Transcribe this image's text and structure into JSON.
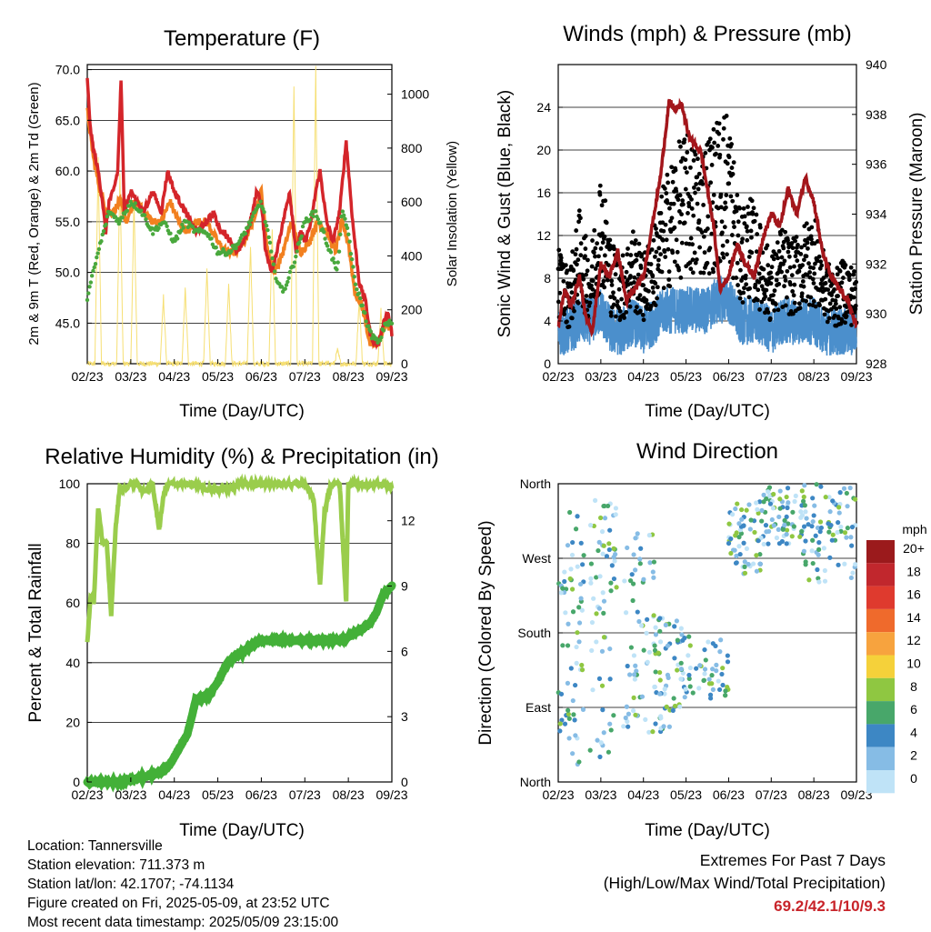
{
  "chart_data": [
    {
      "type": "line",
      "title": "Temperature (F)",
      "xlabel": "Time (Day/UTC)",
      "ylabel": "2m & 9m T (Red, Orange) & 2m Td (Green)",
      "y2label": "Solar Insolation (Yellow)",
      "xticks": [
        "02/23",
        "03/23",
        "04/23",
        "05/23",
        "06/23",
        "07/23",
        "08/23",
        "09/23"
      ],
      "yticks": [
        "45.0",
        "50.0",
        "55.0",
        "60.0",
        "65.0",
        "70.0"
      ],
      "y2ticks": [
        "0",
        "200",
        "400",
        "600",
        "800",
        "1000"
      ],
      "ylim": [
        41,
        70.5
      ],
      "y2lim": [
        0,
        1110
      ],
      "grid": "horizontal",
      "series": [
        {
          "x": [
            0,
            0.15,
            0.3,
            0.5,
            0.7,
            0.85,
            1.0,
            1.2,
            1.4,
            1.55,
            1.7,
            2.0,
            2.3,
            2.6,
            3.0,
            3.4,
            3.7,
            4.0,
            4.5,
            5.0,
            5.5,
            5.8,
            6.1,
            6.3,
            6.6,
            6.9,
            7.2,
            7.5,
            7.8,
            8.0,
            8.2,
            8.35,
            8.5,
            8.7,
            9.0,
            9.3,
            9.6,
            9.8,
            10.0,
            10.3,
            10.5,
            10.7,
            11.0,
            11.3,
            11.6,
            11.9,
            12.2,
            12.5,
            12.8,
            13.0,
            13.2,
            13.4,
            13.6,
            13.8,
            14.0
          ],
          "values": [
            69,
            64,
            62,
            60,
            57,
            54,
            57,
            58,
            60,
            69,
            56,
            58,
            57,
            56,
            58,
            56,
            60,
            58,
            56,
            54,
            55,
            56,
            54,
            54,
            53,
            52,
            53,
            55,
            58,
            57,
            52,
            51,
            50,
            52,
            55,
            58,
            52,
            54,
            53,
            55,
            58,
            60,
            55,
            53,
            56,
            63,
            55,
            49,
            47,
            44,
            43,
            43,
            45,
            46,
            44
          ]
        },
        {
          "x": [
            0,
            0.3,
            0.6,
            0.9,
            1.2,
            1.5,
            1.8,
            2.2,
            2.6,
            3.0,
            3.4,
            3.8,
            4.2,
            4.6,
            5.0,
            5.5,
            6.0,
            6.4,
            6.8,
            7.2,
            7.6,
            8.0,
            8.3,
            8.6,
            9.0,
            9.4,
            9.8,
            10.2,
            10.6,
            11.0,
            11.4,
            11.7,
            12.0,
            12.3,
            12.6,
            13.0,
            13.4,
            13.7,
            14.0
          ],
          "values": [
            66,
            61,
            58,
            56,
            56,
            57,
            55,
            57,
            56,
            55,
            55,
            57,
            55,
            54,
            55,
            55,
            53,
            52,
            52,
            53,
            55,
            58,
            52,
            50,
            52,
            55,
            52,
            53,
            55,
            54,
            52,
            55,
            53,
            48,
            47,
            43,
            43,
            45,
            44
          ]
        },
        {
          "x": [
            0,
            0.5,
            1.0,
            1.5,
            2.0,
            2.5,
            3.0,
            3.5,
            4.0,
            4.5,
            5.0,
            5.5,
            6.0,
            6.5,
            7.0,
            7.5,
            8.0,
            8.3,
            8.6,
            9.0,
            9.5,
            10.0,
            10.5,
            11.0,
            11.5,
            11.7,
            12.0,
            12.3,
            12.6,
            13.0,
            13.4,
            13.7,
            14.0
          ],
          "values": [
            47.5,
            52,
            56,
            55,
            57,
            56,
            54,
            55,
            53,
            55,
            54,
            54,
            52,
            52,
            53,
            55,
            57,
            54,
            50,
            48,
            51,
            55,
            56,
            53,
            50,
            56,
            54,
            49,
            47,
            44,
            43,
            45,
            45
          ]
        },
        {
          "x": [
            0,
            0.35,
            0.5,
            0.65,
            0.9,
            1.35,
            1.5,
            1.65,
            1.9,
            2.0,
            2.15,
            2.3,
            2.5,
            3.35,
            3.5,
            3.65,
            3.9,
            4.35,
            4.5,
            4.65,
            4.9,
            5.35,
            5.5,
            5.65,
            5.9,
            6.35,
            6.5,
            6.65,
            6.9,
            7.35,
            7.5,
            7.65,
            7.9,
            8.35,
            8.5,
            8.65,
            8.9,
            9.35,
            9.5,
            9.65,
            9.9,
            10.35,
            10.5,
            10.65,
            10.9,
            11.35,
            11.5,
            11.65,
            11.9,
            12.35,
            12.5,
            12.65,
            12.9,
            13.35,
            13.5,
            13.65,
            13.9,
            14.0
          ],
          "values": [
            0,
            0,
            760,
            0,
            0,
            0,
            700,
            0,
            0,
            0,
            600,
            0,
            0,
            0,
            250,
            0,
            0,
            0,
            280,
            0,
            0,
            0,
            350,
            0,
            0,
            0,
            300,
            0,
            0,
            0,
            440,
            0,
            0,
            0,
            500,
            0,
            0,
            0,
            1030,
            0,
            0,
            0,
            1100,
            0,
            0,
            0,
            50,
            0,
            0,
            0,
            240,
            0,
            0,
            0,
            200,
            0,
            0,
            0
          ]
        }
      ]
    },
    {
      "type": "scatter",
      "title": "Winds (mph) & Pressure (mb)",
      "xlabel": "Time (Day/UTC)",
      "ylabel": "Sonic Wind & Gust (Blue, Black)",
      "y2label": "Station Pressure (Maroon)",
      "xticks": [
        "02/23",
        "03/23",
        "04/23",
        "05/23",
        "06/23",
        "07/23",
        "08/23",
        "09/23"
      ],
      "yticks": [
        "0",
        "4",
        "8",
        "12",
        "16",
        "20",
        "24"
      ],
      "y2ticks": [
        "928",
        "930",
        "932",
        "934",
        "936",
        "938",
        "940"
      ],
      "ylim": [
        0,
        28
      ],
      "y2lim": [
        928,
        940
      ],
      "grid": "horizontal",
      "series": [
        {
          "x": [
            0,
            0.3,
            0.6,
            1.0,
            1.3,
            1.6,
            2.0,
            2.4,
            2.8,
            3.2,
            3.6,
            4.0,
            4.4,
            4.8,
            5.2,
            5.5,
            5.8,
            6.1,
            6.4,
            6.7,
            7.0,
            7.3,
            7.6,
            8.0,
            8.4,
            8.8,
            9.2,
            9.6,
            10.0,
            10.4,
            10.8,
            11.2,
            11.6,
            12.0,
            12.4,
            12.8,
            13.2,
            13.6,
            14.0
          ],
          "values": [
            929.5,
            931.0,
            930.3,
            931.5,
            929.8,
            929.3,
            932.0,
            931.5,
            932.5,
            930.5,
            931.0,
            931.5,
            933.5,
            935.5,
            938.5,
            938.2,
            938.4,
            937.2,
            936.8,
            936.5,
            935.0,
            933.5,
            931.0,
            931.5,
            932.8,
            932.0,
            931.5,
            933.0,
            934.0,
            933.5,
            935.0,
            934.0,
            935.5,
            934.5,
            932.5,
            931.5,
            931.0,
            930.5,
            929.5
          ]
        },
        {
          "x": [
            0,
            0.5,
            1,
            1.5,
            2,
            2.5,
            3,
            3.5,
            4,
            4.5,
            5,
            5.5,
            6,
            6.5,
            7,
            7.5,
            8,
            8.5,
            9,
            9.5,
            10,
            10.5,
            11,
            11.5,
            12,
            12.5,
            13,
            13.5,
            14
          ],
          "values": [
            3,
            3,
            4,
            4,
            5,
            3,
            3,
            4,
            3,
            4,
            5,
            5,
            5,
            5,
            5,
            6,
            6,
            4,
            4,
            4,
            3,
            4,
            4,
            4,
            4,
            3,
            3,
            3,
            3
          ]
        },
        {
          "x": [
            0,
            0.5,
            1,
            1.5,
            2,
            2.5,
            3,
            3.5,
            4,
            4.5,
            5,
            5.5,
            6,
            6.5,
            7,
            7.5,
            8,
            8.5,
            9,
            9.5,
            10,
            10.5,
            11,
            11.5,
            12,
            12.5,
            13,
            13.5,
            14
          ],
          "values": [
            8,
            6,
            10,
            7,
            13,
            8,
            7,
            9,
            7,
            9,
            12,
            14,
            15,
            14,
            15,
            16,
            17,
            10,
            11,
            9,
            7,
            9,
            8,
            9,
            10,
            7,
            6,
            7,
            6
          ]
        }
      ]
    },
    {
      "type": "line",
      "title": "Relative Humidity (%) & Precipitation (in)",
      "xlabel": "Time (Day/UTC)",
      "ylabel": "Percent & Total Rainfall",
      "xticks": [
        "02/23",
        "03/23",
        "04/23",
        "05/23",
        "06/23",
        "07/23",
        "08/23",
        "09/23"
      ],
      "yticks": [
        "0",
        "20",
        "40",
        "60",
        "80",
        "100"
      ],
      "y2ticks": [
        "0",
        "3",
        "6",
        "9",
        "12"
      ],
      "ylim": [
        0,
        100
      ],
      "y2lim": [
        0,
        13.7
      ],
      "grid": "horizontal",
      "series": [
        {
          "x": [
            0,
            0.15,
            0.3,
            0.5,
            0.7,
            0.9,
            1.1,
            1.3,
            1.5,
            1.7,
            2.0,
            2.3,
            2.6,
            3.0,
            3.3,
            3.5,
            3.7,
            4.0,
            4.5,
            5.0,
            5.5,
            6.0,
            6.5,
            7.0,
            7.5,
            8.0,
            8.4,
            8.8,
            9.2,
            9.6,
            10.0,
            10.4,
            10.7,
            10.9,
            11.2,
            11.6,
            11.9,
            12.0,
            12.2,
            12.5,
            13.0,
            13.5,
            14.0
          ],
          "values": [
            47,
            62,
            60,
            92,
            80,
            80,
            56,
            85,
            99,
            98,
            100,
            100,
            97,
            100,
            85,
            96,
            100,
            100,
            100,
            100,
            98,
            98,
            98,
            100,
            100,
            100,
            100,
            100,
            100,
            100,
            100,
            95,
            66,
            90,
            100,
            100,
            60,
            100,
            100,
            100,
            100,
            100,
            99
          ]
        },
        {
          "x": [
            0,
            1.5,
            2.5,
            3.5,
            3.8,
            4.2,
            4.6,
            5.0,
            5.6,
            6.0,
            6.4,
            6.8,
            7.2,
            7.6,
            8.0,
            8.5,
            9.0,
            9.5,
            10.0,
            10.5,
            11.0,
            11.5,
            11.9,
            12.2,
            12.6,
            13.0,
            13.3,
            13.6,
            14.0
          ],
          "values": [
            0,
            0,
            0.2,
            0.5,
            0.8,
            1.5,
            2.2,
            3.8,
            4.0,
            4.6,
            5.4,
            5.8,
            6.0,
            6.3,
            6.5,
            6.5,
            6.5,
            6.5,
            6.5,
            6.5,
            6.5,
            6.5,
            6.6,
            6.8,
            7.0,
            7.3,
            7.8,
            8.6,
            9.0
          ]
        }
      ]
    },
    {
      "type": "scatter",
      "title": "Wind Direction",
      "xlabel": "Time (Day/UTC)",
      "ylabel": "Direction (Colored By Speed)",
      "xticks": [
        "02/23",
        "03/23",
        "04/23",
        "05/23",
        "06/23",
        "07/23",
        "08/23",
        "09/23"
      ],
      "yticks": [
        "North",
        "East",
        "South",
        "West",
        "North"
      ],
      "ylim": [
        0,
        360
      ],
      "grid": "horizontal",
      "legend": {
        "title": "mph",
        "labels": [
          "20+",
          "18",
          "16",
          "14",
          "12",
          "10",
          "8",
          "6",
          "4",
          "2",
          "0"
        ],
        "colors": [
          "#9b1a1c",
          "#c1272d",
          "#df3a2e",
          "#ef6a2c",
          "#f7a33e",
          "#f5d13a",
          "#8fc741",
          "#48a76a",
          "#3d87c4",
          "#86bce5",
          "#bfe3f7"
        ]
      }
    }
  ],
  "footer": {
    "location": "Location: Tannersville",
    "elevation": "Station elevation: 711.373 m",
    "latlon": "Station lat/lon: 42.1707; -74.1134",
    "created": "Figure created on Fri, 2025-05-09, at 23:52 UTC",
    "recent": "Most recent data timestamp: 2025/05/09 23:15:00"
  },
  "extremes": {
    "title": "Extremes For Past 7 Days",
    "subtitle": "(High/Low/Max Wind/Total Precipitation)",
    "values": "69.2/42.1/10/9.3"
  },
  "colors": {
    "temp2m": "#d4252a",
    "temp9m": "#f2801f",
    "dewpoint": "#49a83d",
    "solar": "#f6df73",
    "wind": "#4b8fcc",
    "gust": "#000000",
    "pressure": "#a3161b",
    "rh": "#9acd4c",
    "rain": "#43b038"
  }
}
